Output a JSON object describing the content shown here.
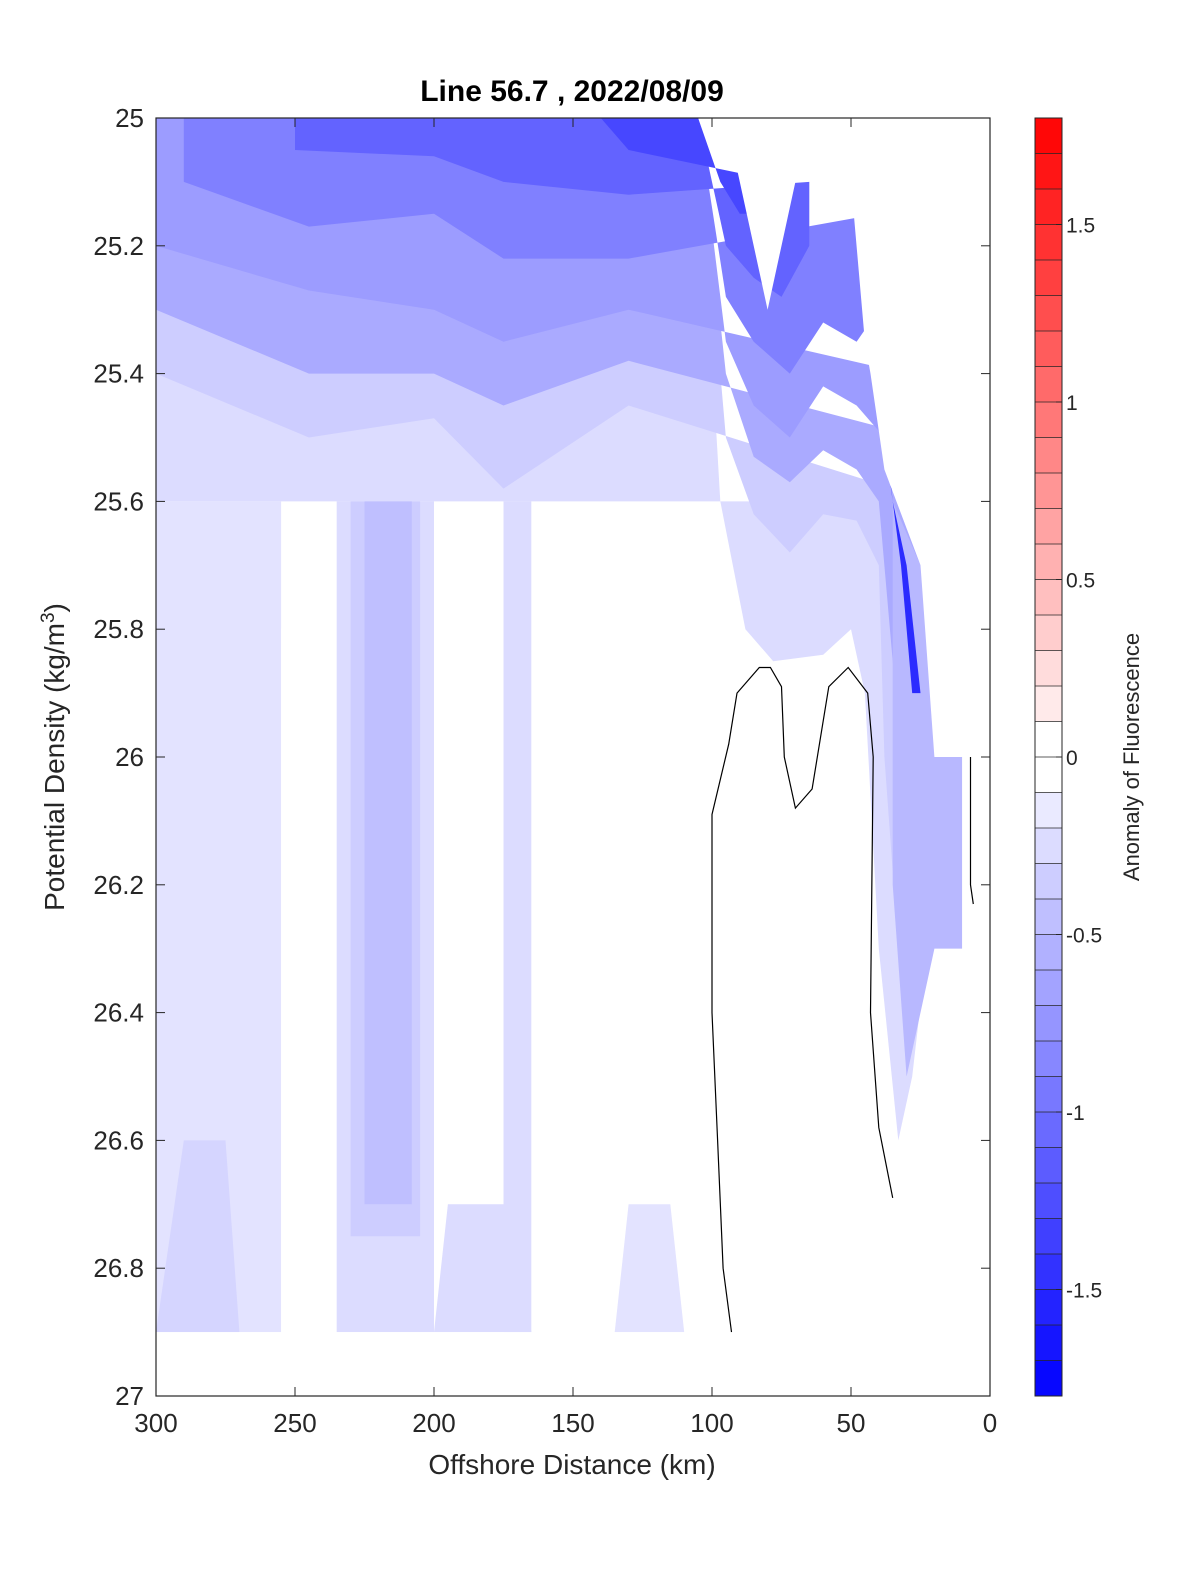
{
  "chart_data": {
    "type": "contour",
    "title": "Line 56.7 , 2022/08/09",
    "xlabel": "Offshore Distance (km)",
    "ylabel_main": "Potential Density (kg/m",
    "ylabel_sup": "3",
    "ylabel_end": ")",
    "xlim": [
      300,
      0
    ],
    "ylim": [
      25,
      27
    ],
    "y_reversed": true,
    "x_ticks": [
      "300",
      "250",
      "200",
      "150",
      "100",
      "50",
      "0"
    ],
    "y_ticks": [
      "25",
      "25.2",
      "25.4",
      "25.6",
      "25.8",
      "26",
      "26.2",
      "26.4",
      "26.6",
      "26.8",
      "27"
    ],
    "colorbar": {
      "label": "Anomaly of Fluorescence",
      "range": [
        -1.8,
        1.8
      ],
      "step": 0.1,
      "ticks": [
        "1.5",
        "1",
        "0.5",
        "0",
        "-0.5",
        "-1",
        "-1.5"
      ],
      "min_color": "#0000ff",
      "mid_color": "#ffffff",
      "max_color": "#ff0000"
    },
    "data_extent": {
      "x_range": [
        300,
        0
      ],
      "y_range": [
        25,
        26.9
      ]
    },
    "zero_contour_lines": [
      [
        [
          93,
          26.9
        ],
        [
          96,
          26.8
        ],
        [
          98,
          26.6
        ],
        [
          100,
          26.4
        ],
        [
          100,
          26.2
        ],
        [
          100,
          26.09
        ],
        [
          94,
          25.98
        ],
        [
          91,
          25.9
        ],
        [
          83,
          25.86
        ],
        [
          79,
          25.86
        ],
        [
          75,
          25.89
        ],
        [
          74,
          26.0
        ],
        [
          70,
          26.08
        ],
        [
          64,
          26.05
        ],
        [
          58,
          25.89
        ],
        [
          51,
          25.86
        ],
        [
          44,
          25.9
        ],
        [
          42,
          26.0
        ],
        [
          43,
          26.4
        ],
        [
          40,
          26.58
        ],
        [
          35,
          26.69
        ]
      ],
      [
        [
          7,
          26.0
        ],
        [
          7,
          26.1
        ],
        [
          7,
          26.2
        ],
        [
          6,
          26.23
        ]
      ]
    ],
    "bands": [
      {
        "value": -0.25,
        "polygon": [
          [
            300,
            25
          ],
          [
            105,
            25
          ],
          [
            97,
            25.6
          ],
          [
            88,
            25.8
          ],
          [
            78,
            25.85
          ],
          [
            60,
            25.84
          ],
          [
            50,
            25.8
          ],
          [
            45,
            25.9
          ],
          [
            40,
            26.3
          ],
          [
            33,
            26.6
          ],
          [
            28,
            26.5
          ],
          [
            20,
            26.2
          ],
          [
            15,
            26.0
          ],
          [
            15,
            25.6
          ],
          [
            300,
            25.6
          ]
        ]
      },
      {
        "value": -0.35,
        "polygon": [
          [
            300,
            25
          ],
          [
            105,
            25
          ],
          [
            95,
            25.5
          ],
          [
            85,
            25.62
          ],
          [
            72,
            25.68
          ],
          [
            60,
            25.62
          ],
          [
            48,
            25.63
          ],
          [
            40,
            25.7
          ],
          [
            38,
            26.0
          ],
          [
            33,
            26.3
          ],
          [
            30,
            26.4
          ],
          [
            25,
            26.3
          ],
          [
            20,
            26.1
          ],
          [
            20,
            25.6
          ],
          [
            130,
            25.45
          ],
          [
            175,
            25.58
          ],
          [
            200,
            25.47
          ],
          [
            245,
            25.5
          ],
          [
            300,
            25.4
          ]
        ]
      },
      {
        "value": -0.6,
        "polygon": [
          [
            300,
            25
          ],
          [
            105,
            25
          ],
          [
            95,
            25.4
          ],
          [
            85,
            25.53
          ],
          [
            72,
            25.57
          ],
          [
            60,
            25.52
          ],
          [
            48,
            25.55
          ],
          [
            40,
            25.6
          ],
          [
            34,
            25.9
          ],
          [
            30,
            26.2
          ],
          [
            28,
            26.3
          ],
          [
            25,
            26.2
          ],
          [
            25,
            25.5
          ],
          [
            130,
            25.38
          ],
          [
            175,
            25.45
          ],
          [
            200,
            25.4
          ],
          [
            245,
            25.4
          ],
          [
            300,
            25.3
          ]
        ]
      },
      {
        "value": -0.7,
        "polygon": [
          [
            300,
            25
          ],
          [
            105,
            25
          ],
          [
            95,
            25.35
          ],
          [
            85,
            25.45
          ],
          [
            72,
            25.5
          ],
          [
            60,
            25.42
          ],
          [
            48,
            25.45
          ],
          [
            38,
            25.5
          ],
          [
            30,
            25.6
          ],
          [
            30,
            25.4
          ],
          [
            130,
            25.3
          ],
          [
            175,
            25.35
          ],
          [
            200,
            25.3
          ],
          [
            245,
            25.27
          ],
          [
            300,
            25.2
          ]
        ]
      },
      {
        "value": -0.9,
        "polygon": [
          [
            290,
            25
          ],
          [
            105,
            25
          ],
          [
            95,
            25.28
          ],
          [
            85,
            25.35
          ],
          [
            72,
            25.4
          ],
          [
            60,
            25.32
          ],
          [
            48,
            25.35
          ],
          [
            40,
            25.3
          ],
          [
            40,
            25.15
          ],
          [
            130,
            25.22
          ],
          [
            175,
            25.22
          ],
          [
            200,
            25.15
          ],
          [
            245,
            25.17
          ],
          [
            290,
            25.1
          ]
        ]
      },
      {
        "value": -1.1,
        "polygon": [
          [
            250,
            25
          ],
          [
            105,
            25
          ],
          [
            95,
            25.2
          ],
          [
            85,
            25.25
          ],
          [
            75,
            25.28
          ],
          [
            65,
            25.2
          ],
          [
            65,
            25.1
          ],
          [
            130,
            25.12
          ],
          [
            175,
            25.1
          ],
          [
            200,
            25.06
          ],
          [
            250,
            25.05
          ]
        ]
      },
      {
        "value": -1.3,
        "polygon": [
          [
            140,
            25
          ],
          [
            105,
            25
          ],
          [
            97,
            25.1
          ],
          [
            90,
            25.15
          ],
          [
            80,
            25.15
          ],
          [
            75,
            25.1
          ],
          [
            130,
            25.05
          ]
        ]
      },
      {
        "value": -0.25,
        "polygon": [
          [
            235,
            25.6
          ],
          [
            200,
            25.6
          ],
          [
            200,
            26.9
          ],
          [
            235,
            26.9
          ]
        ]
      },
      {
        "value": -0.35,
        "polygon": [
          [
            230,
            25.6
          ],
          [
            205,
            25.6
          ],
          [
            205,
            26.75
          ],
          [
            230,
            26.75
          ]
        ]
      },
      {
        "value": -0.45,
        "polygon": [
          [
            225,
            25.6
          ],
          [
            208,
            25.6
          ],
          [
            208,
            26.7
          ],
          [
            225,
            26.7
          ]
        ]
      },
      {
        "value": -0.25,
        "polygon": [
          [
            175,
            25.6
          ],
          [
            165,
            25.6
          ],
          [
            165,
            26.9
          ],
          [
            175,
            26.9
          ]
        ]
      },
      {
        "value": -0.2,
        "polygon": [
          [
            300,
            25.6
          ],
          [
            255,
            25.6
          ],
          [
            255,
            26.9
          ],
          [
            300,
            26.9
          ]
        ]
      },
      {
        "value": -0.3,
        "polygon": [
          [
            290,
            26.6
          ],
          [
            275,
            26.6
          ],
          [
            270,
            26.9
          ],
          [
            300,
            26.9
          ]
        ]
      },
      {
        "value": -0.25,
        "polygon": [
          [
            195,
            26.7
          ],
          [
            170,
            26.7
          ],
          [
            165,
            26.9
          ],
          [
            200,
            26.9
          ]
        ]
      },
      {
        "value": -0.2,
        "polygon": [
          [
            130,
            26.7
          ],
          [
            115,
            26.7
          ],
          [
            110,
            26.9
          ],
          [
            135,
            26.9
          ]
        ]
      },
      {
        "value": -0.5,
        "polygon": [
          [
            35,
            25.6
          ],
          [
            25,
            25.7
          ],
          [
            15,
            26.0
          ],
          [
            10,
            26.0
          ],
          [
            10,
            26.3
          ],
          [
            20,
            26.3
          ],
          [
            30,
            26.5
          ],
          [
            35,
            26.2
          ]
        ]
      },
      {
        "value": -1.5,
        "polygon": [
          [
            40,
            25.4
          ],
          [
            35,
            25.6
          ],
          [
            30,
            25.7
          ],
          [
            25,
            25.9
          ],
          [
            28,
            25.9
          ],
          [
            32,
            25.7
          ],
          [
            38,
            25.5
          ]
        ]
      },
      {
        "value": 0.2,
        "polygon": [
          [
            5,
            26.0
          ],
          [
            0,
            26.0
          ],
          [
            0,
            25.92
          ],
          [
            5,
            26.15
          ]
        ]
      }
    ],
    "masks": [
      {
        "polygon": [
          [
            300,
            26.9
          ],
          [
            0,
            26.9
          ],
          [
            0,
            27
          ],
          [
            300,
            27
          ]
        ]
      },
      {
        "polygon": [
          [
            95,
            25
          ],
          [
            80,
            25.3
          ],
          [
            65,
            25
          ],
          [
            50,
            25
          ],
          [
            50,
            25.1
          ],
          [
            45,
            25.35
          ],
          [
            43,
            25.4
          ],
          [
            38,
            25.55
          ],
          [
            25,
            25.7
          ],
          [
            20,
            26.0
          ],
          [
            10,
            26.0
          ],
          [
            10,
            26.3
          ],
          [
            20,
            26.3
          ],
          [
            0,
            26.9
          ],
          [
            0,
            25
          ],
          [
            95,
            25
          ]
        ]
      }
    ],
    "white_core_bands": [
      {
        "polygon": [
          [
            255,
            25.8
          ],
          [
            245,
            25.7
          ],
          [
            240,
            25.75
          ],
          [
            240,
            26.9
          ],
          [
            255,
            26.9
          ]
        ]
      },
      {
        "polygon": [
          [
            155,
            25.9
          ],
          [
            145,
            25.85
          ],
          [
            140,
            25.95
          ],
          [
            140,
            26.9
          ],
          [
            155,
            26.9
          ]
        ]
      }
    ]
  }
}
